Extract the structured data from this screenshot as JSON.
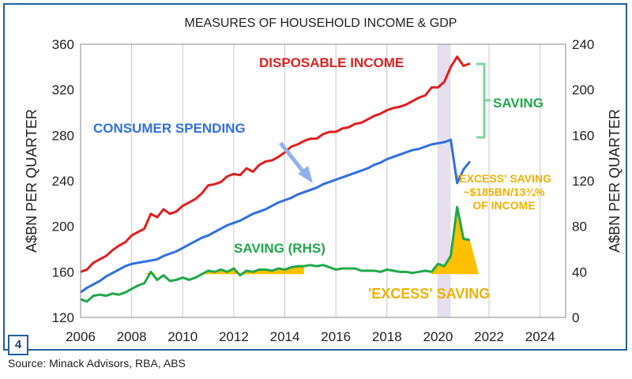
{
  "chart_data": {
    "type": "line",
    "title": "MEASURES OF HOUSEHOLD INCOME & GDP",
    "ylabel_left": "A$BN PER QUARTER",
    "ylabel_right": "A$BN PER QUARTER",
    "xlim": [
      2006,
      2025
    ],
    "ylim_left": [
      120,
      360
    ],
    "ylim_right": [
      0,
      240
    ],
    "x_ticks": [
      2006,
      2008,
      2010,
      2012,
      2014,
      2016,
      2018,
      2020,
      2022,
      2024
    ],
    "y_ticks_left": [
      120,
      160,
      200,
      240,
      280,
      320,
      360
    ],
    "y_ticks_right": [
      0,
      40,
      80,
      120,
      160,
      200,
      240
    ],
    "grid": "vertical",
    "shaded_period": [
      2020.0,
      2020.5
    ],
    "series": [
      {
        "name": "DISPOSABLE INCOME",
        "axis": "left",
        "color": "#e01e1e",
        "x": [
          2006.0,
          2006.25,
          2006.5,
          2006.75,
          2007.0,
          2007.25,
          2007.5,
          2007.75,
          2008.0,
          2008.25,
          2008.5,
          2008.75,
          2009.0,
          2009.25,
          2009.5,
          2009.75,
          2010.0,
          2010.25,
          2010.5,
          2010.75,
          2011.0,
          2011.25,
          2011.5,
          2011.75,
          2012.0,
          2012.25,
          2012.5,
          2012.75,
          2013.0,
          2013.25,
          2013.5,
          2013.75,
          2014.0,
          2014.25,
          2014.5,
          2014.75,
          2015.0,
          2015.25,
          2015.5,
          2015.75,
          2016.0,
          2016.25,
          2016.5,
          2016.75,
          2017.0,
          2017.25,
          2017.5,
          2017.75,
          2018.0,
          2018.25,
          2018.5,
          2018.75,
          2019.0,
          2019.25,
          2019.5,
          2019.75,
          2020.0,
          2020.25,
          2020.5,
          2020.75,
          2021.0,
          2021.25
        ],
        "values": [
          160,
          162,
          168,
          171,
          174,
          179,
          183,
          186,
          192,
          195,
          198,
          211,
          208,
          215,
          211,
          213,
          218,
          221,
          224,
          229,
          236,
          237,
          239,
          244,
          246,
          245,
          251,
          248,
          254,
          257,
          258,
          261,
          265,
          270,
          272,
          275,
          277,
          277,
          281,
          283,
          283,
          286,
          287,
          290,
          291,
          294,
          297,
          299,
          302,
          304,
          305,
          307,
          310,
          313,
          315,
          322,
          322,
          327,
          340,
          349,
          341,
          343
        ]
      },
      {
        "name": "CONSUMER SPENDING",
        "axis": "left",
        "color": "#2f6fe0",
        "x": [
          2006.0,
          2006.25,
          2006.5,
          2006.75,
          2007.0,
          2007.25,
          2007.5,
          2007.75,
          2008.0,
          2008.25,
          2008.5,
          2008.75,
          2009.0,
          2009.25,
          2009.5,
          2009.75,
          2010.0,
          2010.25,
          2010.5,
          2010.75,
          2011.0,
          2011.25,
          2011.5,
          2011.75,
          2012.0,
          2012.25,
          2012.5,
          2012.75,
          2013.0,
          2013.25,
          2013.5,
          2013.75,
          2014.0,
          2014.25,
          2014.5,
          2014.75,
          2015.0,
          2015.25,
          2015.5,
          2015.75,
          2016.0,
          2016.25,
          2016.5,
          2016.75,
          2017.0,
          2017.25,
          2017.5,
          2017.75,
          2018.0,
          2018.25,
          2018.5,
          2018.75,
          2019.0,
          2019.25,
          2019.5,
          2019.75,
          2020.0,
          2020.25,
          2020.5,
          2020.75,
          2021.0,
          2021.25
        ],
        "values": [
          142,
          146,
          149,
          152,
          156,
          159,
          162,
          165,
          167,
          168,
          169,
          170,
          171,
          174,
          176,
          178,
          181,
          184,
          187,
          190,
          192,
          195,
          198,
          201,
          203,
          205,
          208,
          211,
          213,
          215,
          218,
          221,
          223,
          225,
          228,
          230,
          232,
          234,
          237,
          239,
          241,
          243,
          245,
          247,
          249,
          251,
          254,
          256,
          259,
          261,
          263,
          265,
          267,
          268,
          270,
          272,
          273,
          274,
          276,
          238,
          250,
          257
        ]
      },
      {
        "name": "SAVING (RHS)",
        "axis": "right",
        "color": "#1fa84a",
        "x": [
          2006.0,
          2006.25,
          2006.5,
          2006.75,
          2007.0,
          2007.25,
          2007.5,
          2007.75,
          2008.0,
          2008.25,
          2008.5,
          2008.75,
          2009.0,
          2009.25,
          2009.5,
          2009.75,
          2010.0,
          2010.25,
          2010.5,
          2010.75,
          2011.0,
          2011.25,
          2011.5,
          2011.75,
          2012.0,
          2012.25,
          2012.5,
          2012.75,
          2013.0,
          2013.25,
          2013.5,
          2013.75,
          2014.0,
          2014.25,
          2014.5,
          2014.75,
          2015.0,
          2015.25,
          2015.5,
          2015.75,
          2016.0,
          2016.25,
          2016.5,
          2016.75,
          2017.0,
          2017.25,
          2017.5,
          2017.75,
          2018.0,
          2018.25,
          2018.5,
          2018.75,
          2019.0,
          2019.25,
          2019.5,
          2019.75,
          2020.0,
          2020.25,
          2020.5,
          2020.75,
          2021.0,
          2021.25
        ],
        "values": [
          16,
          14,
          19,
          20,
          19,
          21,
          20,
          22,
          25,
          28,
          30,
          40,
          33,
          37,
          32,
          33,
          35,
          33,
          35,
          38,
          41,
          40,
          42,
          40,
          43,
          37,
          41,
          40,
          42,
          42,
          41,
          43,
          42,
          44,
          45,
          45,
          46,
          45,
          46,
          44,
          42,
          43,
          43,
          43,
          41,
          41,
          41,
          40,
          42,
          41,
          40,
          40,
          39,
          40,
          41,
          40,
          47,
          45,
          54,
          97,
          69,
          68
        ]
      }
    ],
    "annotations": {
      "saving": "SAVING",
      "excess_saving_note_line1": "'EXCESS' SAVING",
      "excess_saving_note_line2": "~$185BN/13¾%",
      "excess_saving_note_line3": "OF INCOME",
      "excess_saving_label": "'EXCESS' SAVING"
    },
    "colors": {
      "frame": "#1f5fa0",
      "excess_fill": "#ffc000",
      "excess_text": "#f0b000",
      "shade": "#e6e0ee",
      "bracket": "#7fd49a",
      "grid": "#c8c8c8"
    }
  },
  "panel_number": "4",
  "source": "Source: Minack Advisors, RBA, ABS"
}
